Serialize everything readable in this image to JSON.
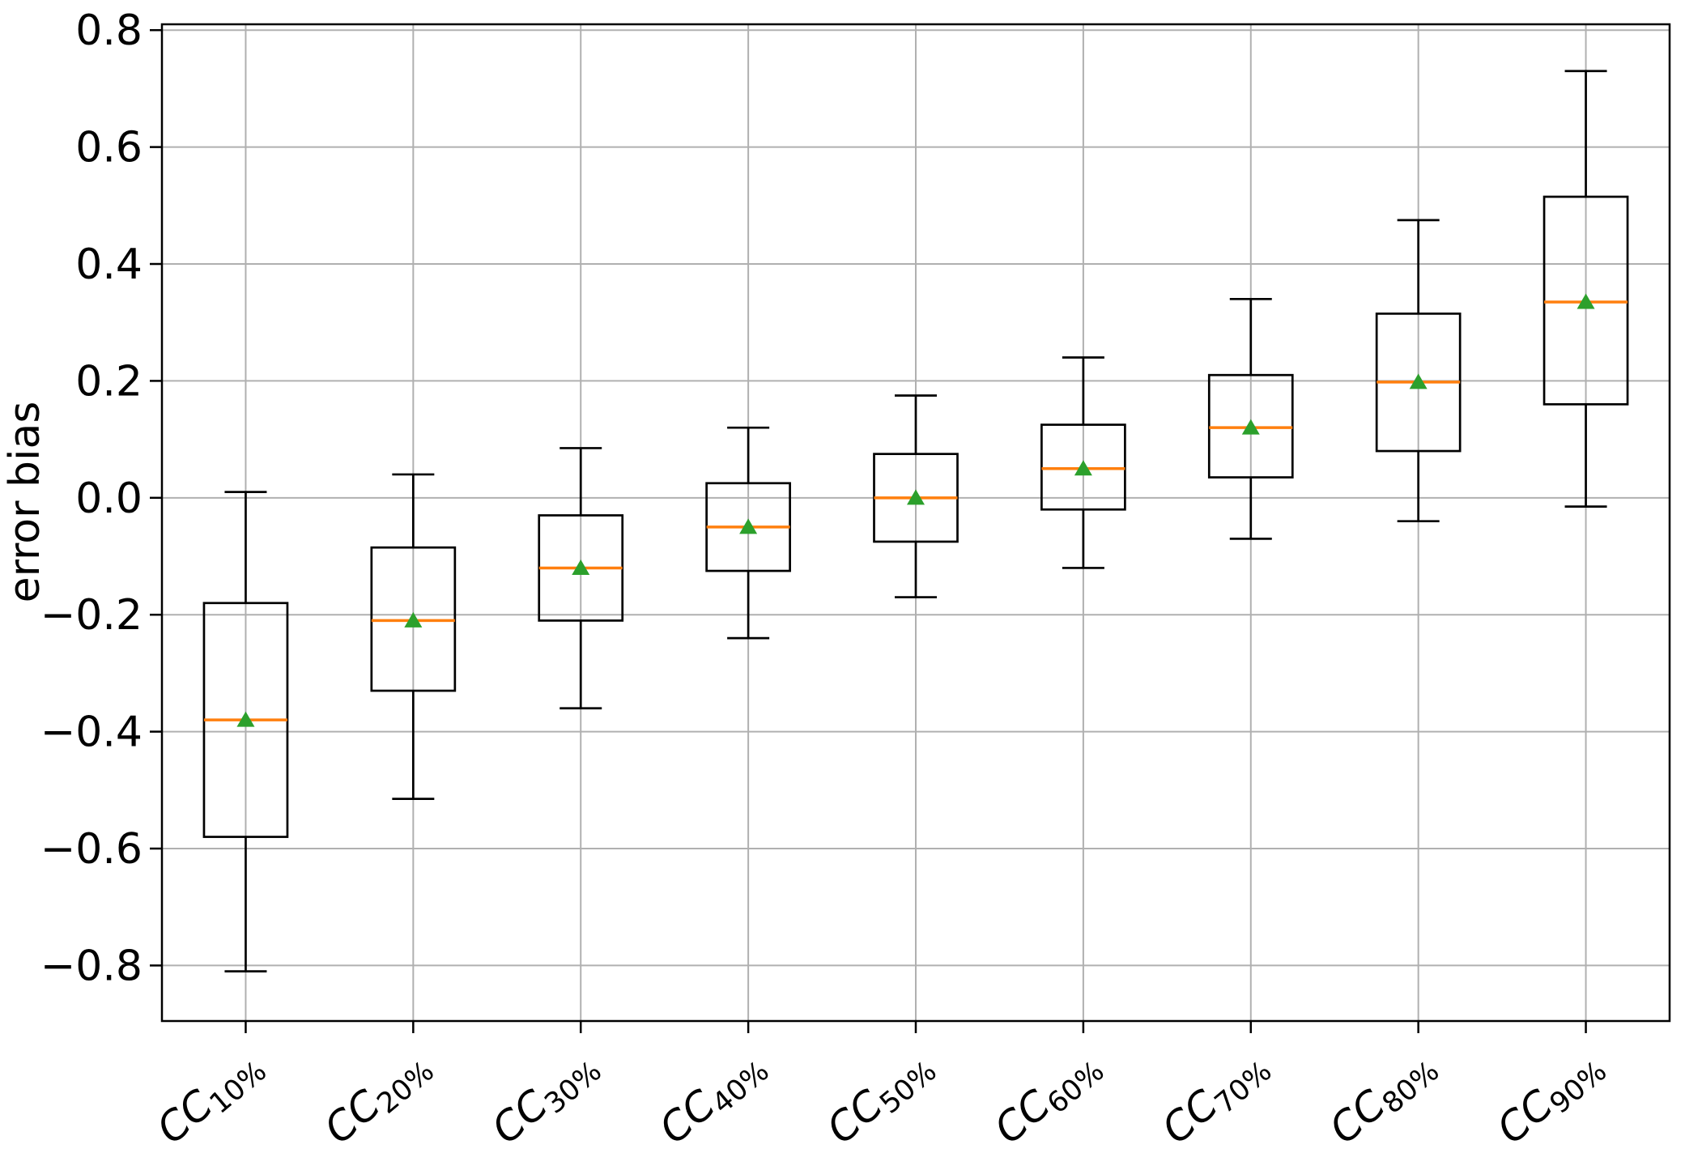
{
  "chart_data": {
    "type": "boxplot",
    "title": "",
    "xlabel": "",
    "ylabel": "error bias",
    "ylim": [
      -0.895,
      0.81
    ],
    "yticks": [
      0.8,
      0.6,
      0.4,
      0.2,
      0.0,
      -0.2,
      -0.4,
      -0.6,
      -0.8
    ],
    "ytick_labels": [
      "0.8",
      "0.6",
      "0.4",
      "0.2",
      "0.0",
      "−0.2",
      "−0.4",
      "−0.6",
      "−0.8"
    ],
    "grid": true,
    "legend": "none",
    "x_tick_rotation_deg": 40,
    "categories": [
      {
        "label": "CC10%",
        "base": "CC",
        "sub": "10%"
      },
      {
        "label": "CC20%",
        "base": "CC",
        "sub": "20%"
      },
      {
        "label": "CC30%",
        "base": "CC",
        "sub": "30%"
      },
      {
        "label": "CC40%",
        "base": "CC",
        "sub": "40%"
      },
      {
        "label": "CC50%",
        "base": "CC",
        "sub": "50%"
      },
      {
        "label": "CC60%",
        "base": "CC",
        "sub": "60%"
      },
      {
        "label": "CC70%",
        "base": "CC",
        "sub": "70%"
      },
      {
        "label": "CC80%",
        "base": "CC",
        "sub": "80%"
      },
      {
        "label": "CC90%",
        "base": "CC",
        "sub": "90%"
      }
    ],
    "series": [
      {
        "name": "CC10%",
        "whisker_low": -0.81,
        "q1": -0.58,
        "median": -0.38,
        "mean": -0.38,
        "q3": -0.18,
        "whisker_high": 0.01
      },
      {
        "name": "CC20%",
        "whisker_low": -0.515,
        "q1": -0.33,
        "median": -0.21,
        "mean": -0.21,
        "q3": -0.085,
        "whisker_high": 0.04
      },
      {
        "name": "CC30%",
        "whisker_low": -0.36,
        "q1": -0.21,
        "median": -0.12,
        "mean": -0.12,
        "q3": -0.03,
        "whisker_high": 0.085
      },
      {
        "name": "CC40%",
        "whisker_low": -0.24,
        "q1": -0.125,
        "median": -0.05,
        "mean": -0.05,
        "q3": 0.025,
        "whisker_high": 0.12
      },
      {
        "name": "CC50%",
        "whisker_low": -0.17,
        "q1": -0.075,
        "median": 0.0,
        "mean": 0.0,
        "q3": 0.075,
        "whisker_high": 0.175
      },
      {
        "name": "CC60%",
        "whisker_low": -0.12,
        "q1": -0.02,
        "median": 0.05,
        "mean": 0.05,
        "q3": 0.125,
        "whisker_high": 0.24
      },
      {
        "name": "CC70%",
        "whisker_low": -0.07,
        "q1": 0.035,
        "median": 0.12,
        "mean": 0.12,
        "q3": 0.21,
        "whisker_high": 0.34
      },
      {
        "name": "CC80%",
        "whisker_low": -0.04,
        "q1": 0.08,
        "median": 0.198,
        "mean": 0.198,
        "q3": 0.315,
        "whisker_high": 0.475
      },
      {
        "name": "CC90%",
        "whisker_low": -0.015,
        "q1": 0.16,
        "median": 0.335,
        "mean": 0.335,
        "q3": 0.515,
        "whisker_high": 0.73
      }
    ],
    "colors": {
      "box_line": "#000000",
      "median_line": "#ff7f0e",
      "mean_marker": "#2ca02c",
      "grid_line": "#b0b0b0",
      "axes_line": "#000000",
      "background": "#ffffff"
    }
  }
}
